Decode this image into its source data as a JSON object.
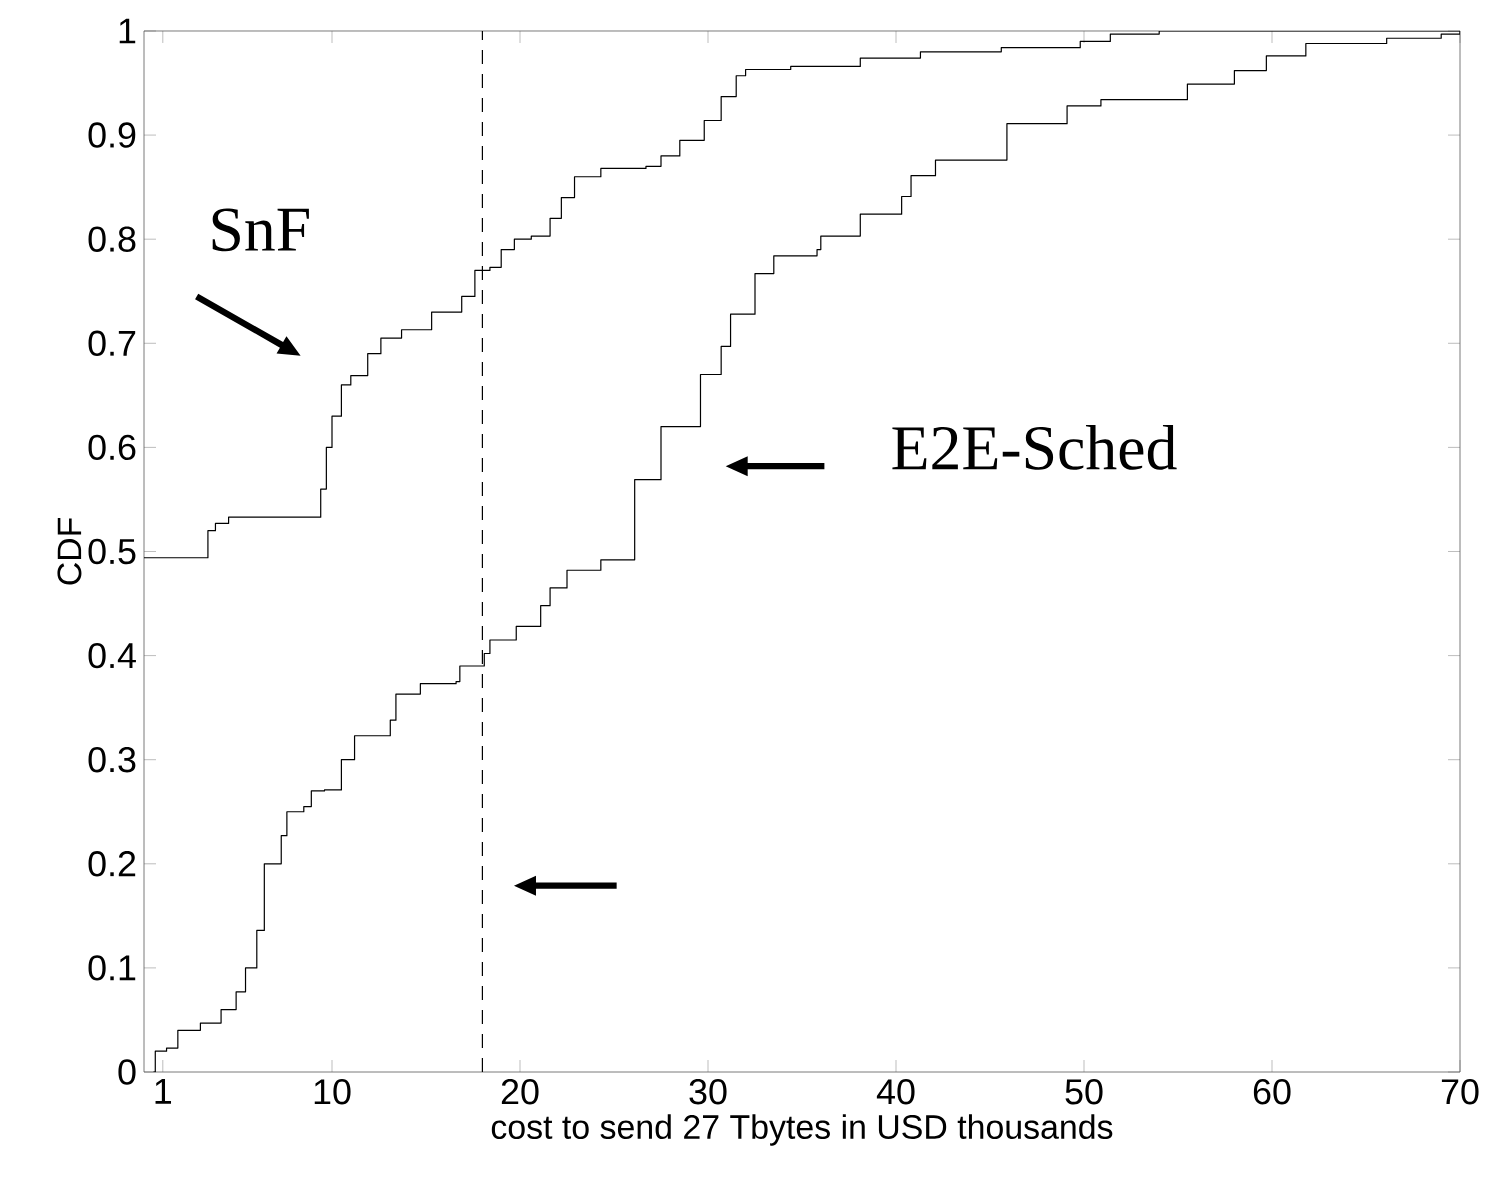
{
  "chart_data": {
    "type": "step",
    "xlabel": "cost to send 27 Tbytes in USD thousands",
    "ylabel": "CDF",
    "xlim": [
      0,
      70
    ],
    "ylim": [
      0,
      1
    ],
    "xticks": [
      1,
      10,
      20,
      30,
      40,
      50,
      60,
      70
    ],
    "yticks": [
      0,
      {
        "value": 0.1,
        "label": "0.1"
      },
      {
        "value": 0.2,
        "label": "0.2"
      },
      {
        "value": 0.3,
        "label": "0.3"
      },
      {
        "value": 0.4,
        "label": "0.4"
      },
      {
        "value": 0.5,
        "label": "0.5"
      },
      {
        "value": 0.6,
        "label": "0.6"
      },
      {
        "value": 0.7,
        "label": "0.7"
      },
      {
        "value": 0.8,
        "label": "0.8"
      },
      {
        "value": 0.9,
        "label": "0.9"
      },
      1
    ],
    "grid": false,
    "marker": "none",
    "line_style": "solid",
    "series": [
      {
        "color": "#000000",
        "x": [
          0,
          3.4,
          3.8,
          4.5,
          9.4,
          9.7,
          10,
          10.5,
          11,
          11.9,
          12.6,
          13.7,
          15.3,
          16.9,
          17.6,
          18.4,
          19,
          19.7,
          20.6,
          21.6,
          22.2,
          22.9,
          24.3,
          26.7,
          27.5,
          28.5,
          29.8,
          30.7,
          31.5,
          32,
          34.4,
          38.1,
          41.3,
          45.6,
          49.8,
          51.4,
          54,
          70
        ],
        "values": [
          0.494,
          0.52,
          0.527,
          0.533,
          0.56,
          0.6,
          0.63,
          0.66,
          0.669,
          0.69,
          0.705,
          0.713,
          0.73,
          0.745,
          0.77,
          0.773,
          0.79,
          0.8,
          0.803,
          0.82,
          0.84,
          0.86,
          0.868,
          0.87,
          0.88,
          0.895,
          0.914,
          0.937,
          0.957,
          0.963,
          0.966,
          0.974,
          0.98,
          0.984,
          0.99,
          0.997,
          1.0,
          1.0
        ]
      },
      {
        "color": "#000000",
        "x": [
          0.5,
          0.6,
          1.2,
          1.8,
          3,
          4.1,
          4.9,
          5.4,
          6,
          6.4,
          7.3,
          7.6,
          8.5,
          8.9,
          9.6,
          10.5,
          11.2,
          13.1,
          13.4,
          14.7,
          16.6,
          16.8,
          18.1,
          18.4,
          19.8,
          21.1,
          21.6,
          22.5,
          24.3,
          26.1,
          27.5,
          29.6,
          30.7,
          31.2,
          32.5,
          33.5,
          35.8,
          36,
          38.1,
          40.3,
          40.8,
          42.1,
          45.9,
          49.1,
          50.9,
          55.5,
          58,
          59.7,
          61.8,
          66.1,
          69,
          70
        ],
        "values": [
          0,
          0.02,
          0.023,
          0.04,
          0.047,
          0.06,
          0.077,
          0.1,
          0.136,
          0.2,
          0.227,
          0.25,
          0.255,
          0.27,
          0.271,
          0.3,
          0.323,
          0.338,
          0.363,
          0.373,
          0.375,
          0.39,
          0.402,
          0.415,
          0.428,
          0.448,
          0.465,
          0.482,
          0.492,
          0.569,
          0.62,
          0.67,
          0.697,
          0.728,
          0.767,
          0.784,
          0.79,
          0.803,
          0.824,
          0.841,
          0.861,
          0.876,
          0.911,
          0.928,
          0.934,
          0.949,
          0.962,
          0.976,
          0.988,
          0.993,
          0.997,
          1.0
        ]
      }
    ],
    "ref_lines": [
      {
        "axis": "x",
        "value": 18,
        "line_style": "dashed",
        "color": "#000000"
      }
    ],
    "annotations": [
      "SnF",
      "E2E-Sched"
    ]
  }
}
